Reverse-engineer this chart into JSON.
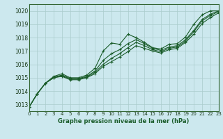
{
  "bg_color": "#cce8ee",
  "grid_color": "#aacccc",
  "line_color": "#1a5c2a",
  "title": "Graphe pression niveau de la mer (hPa)",
  "xlim": [
    0,
    23
  ],
  "ylim": [
    1012.5,
    1020.5
  ],
  "yticks": [
    1013,
    1014,
    1015,
    1016,
    1017,
    1018,
    1019,
    1020
  ],
  "xticks": [
    0,
    1,
    2,
    3,
    4,
    5,
    6,
    7,
    8,
    9,
    10,
    11,
    12,
    13,
    14,
    15,
    16,
    17,
    18,
    19,
    20,
    21,
    22,
    23
  ],
  "series": [
    {
      "x": [
        0,
        1,
        2,
        3,
        4,
        5,
        6,
        7,
        8,
        9,
        10,
        11,
        12,
        13,
        14,
        15,
        16,
        17,
        18,
        19,
        20,
        21,
        22,
        23
      ],
      "y": [
        1012.8,
        1013.8,
        1014.6,
        1015.1,
        1015.3,
        1015.0,
        1015.0,
        1015.2,
        1015.7,
        1017.0,
        1017.6,
        1017.5,
        1018.25,
        1018.0,
        1017.65,
        1017.25,
        1017.15,
        1017.5,
        1017.55,
        1018.05,
        1019.0,
        1019.7,
        1020.0,
        1020.0
      ]
    },
    {
      "x": [
        0,
        1,
        2,
        3,
        4,
        5,
        6,
        7,
        8,
        9,
        10,
        11,
        12,
        13,
        14,
        15,
        16,
        17,
        18,
        19,
        20,
        21,
        22,
        23
      ],
      "y": [
        1012.8,
        1013.8,
        1014.6,
        1015.05,
        1015.2,
        1014.95,
        1014.95,
        1015.1,
        1015.5,
        1016.3,
        1016.8,
        1017.1,
        1017.55,
        1017.85,
        1017.55,
        1017.2,
        1017.05,
        1017.3,
        1017.4,
        1017.85,
        1018.55,
        1019.35,
        1019.75,
        1020.0
      ]
    },
    {
      "x": [
        0,
        1,
        2,
        3,
        4,
        5,
        6,
        7,
        8,
        9,
        10,
        11,
        12,
        13,
        14,
        15,
        16,
        17,
        18,
        19,
        20,
        21,
        22,
        23
      ],
      "y": [
        1012.8,
        1013.8,
        1014.6,
        1015.0,
        1015.15,
        1014.9,
        1014.9,
        1015.05,
        1015.4,
        1016.0,
        1016.45,
        1016.8,
        1017.25,
        1017.65,
        1017.4,
        1017.1,
        1016.95,
        1017.2,
        1017.3,
        1017.75,
        1018.45,
        1019.25,
        1019.65,
        1019.95
      ]
    },
    {
      "x": [
        0,
        1,
        2,
        3,
        4,
        5,
        6,
        7,
        8,
        9,
        10,
        11,
        12,
        13,
        14,
        15,
        16,
        17,
        18,
        19,
        20,
        21,
        22,
        23
      ],
      "y": [
        1012.8,
        1013.8,
        1014.6,
        1015.0,
        1015.1,
        1014.85,
        1014.85,
        1015.0,
        1015.3,
        1015.85,
        1016.2,
        1016.55,
        1016.95,
        1017.4,
        1017.2,
        1017.0,
        1016.85,
        1017.1,
        1017.2,
        1017.65,
        1018.25,
        1019.05,
        1019.5,
        1019.85
      ]
    }
  ]
}
